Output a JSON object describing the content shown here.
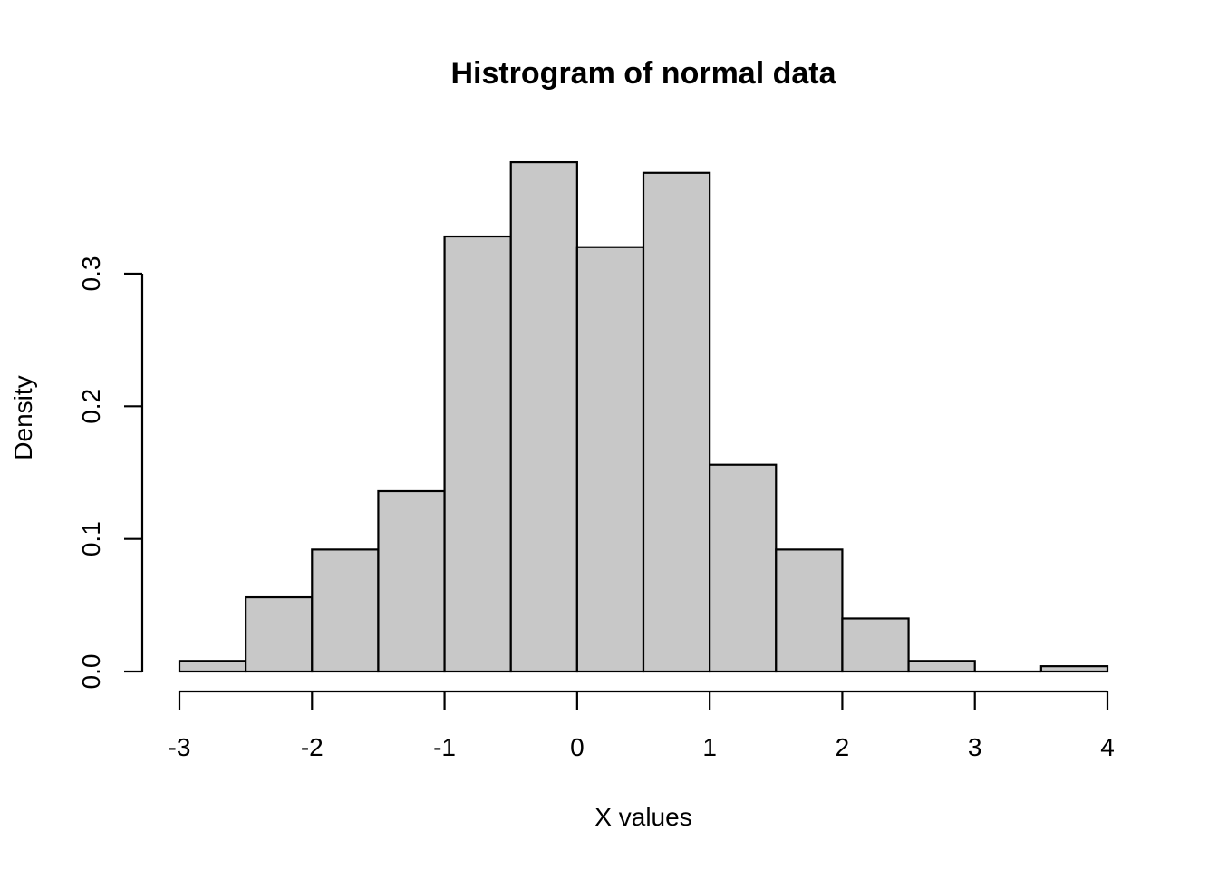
{
  "chart_data": {
    "type": "bar",
    "title": "Histrogram of normal data",
    "xlabel": "X values",
    "ylabel": "Density",
    "bins": [
      {
        "from": -3.0,
        "to": -2.5,
        "density": 0.008
      },
      {
        "from": -2.5,
        "to": -2.0,
        "density": 0.056
      },
      {
        "from": -2.0,
        "to": -1.5,
        "density": 0.092
      },
      {
        "from": -1.5,
        "to": -1.0,
        "density": 0.136
      },
      {
        "from": -1.0,
        "to": -0.5,
        "density": 0.328
      },
      {
        "from": -0.5,
        "to": 0.0,
        "density": 0.384
      },
      {
        "from": 0.0,
        "to": 0.5,
        "density": 0.32
      },
      {
        "from": 0.5,
        "to": 1.0,
        "density": 0.376
      },
      {
        "from": 1.0,
        "to": 1.5,
        "density": 0.156
      },
      {
        "from": 1.5,
        "to": 2.0,
        "density": 0.092
      },
      {
        "from": 2.0,
        "to": 2.5,
        "density": 0.04
      },
      {
        "from": 2.5,
        "to": 3.0,
        "density": 0.008
      },
      {
        "from": 3.0,
        "to": 3.5,
        "density": 0.0
      },
      {
        "from": 3.5,
        "to": 4.0,
        "density": 0.004
      }
    ],
    "categories": [
      "-3–-2.5",
      "-2.5–-2",
      "-2–-1.5",
      "-1.5–-1",
      "-1–-0.5",
      "-0.5–0",
      "0–0.5",
      "0.5–1",
      "1–1.5",
      "1.5–2",
      "2–2.5",
      "2.5–3",
      "3–3.5",
      "3.5–4"
    ],
    "values": [
      0.008,
      0.056,
      0.092,
      0.136,
      0.328,
      0.384,
      0.32,
      0.376,
      0.156,
      0.092,
      0.04,
      0.008,
      0.0,
      0.004
    ],
    "xticks": [
      "-3",
      "-2",
      "-1",
      "0",
      "1",
      "2",
      "3",
      "4"
    ],
    "yticks": [
      "0.0",
      "0.1",
      "0.2",
      "0.3"
    ],
    "xlim": [
      -3,
      4
    ],
    "ylim": [
      0,
      0.3
    ],
    "grid": false,
    "legend": null,
    "bar_color": "#c8c8c8",
    "edge_color": "#000000"
  }
}
